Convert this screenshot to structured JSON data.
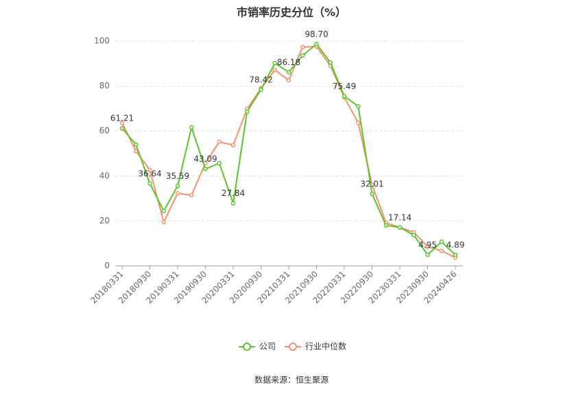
{
  "chart_data": {
    "type": "line",
    "title": "市销率历史分位（%）",
    "source": "数据来源：恒生聚源",
    "categories": [
      "20180331",
      null,
      "20180930",
      null,
      "20190331",
      null,
      "20190930",
      null,
      "20200331",
      null,
      "20200930",
      null,
      "20210331",
      null,
      "20210930",
      null,
      "20220331",
      null,
      "20220930",
      null,
      "20230331",
      null,
      "20230930",
      null,
      "20240426"
    ],
    "series": [
      {
        "name": "公司",
        "color": "#5ac42c",
        "values": [
          61.21,
          54,
          36.64,
          24.4,
          35.59,
          61.6,
          43.09,
          45.7,
          27.84,
          68.6,
          78.42,
          90.2,
          86.18,
          93.6,
          98.7,
          90.5,
          75.49,
          71,
          32.01,
          18,
          17.14,
          13.7,
          4.95,
          10.7,
          4.89
        ],
        "value_labels": [
          "61.21",
          null,
          "36.64",
          null,
          "35.59",
          null,
          "43.09",
          null,
          "27.84",
          null,
          "78.42",
          null,
          "86.18",
          null,
          "98.70",
          null,
          "75.49",
          null,
          "32.01",
          null,
          "17.14",
          null,
          "4.95",
          null,
          "4.89"
        ]
      },
      {
        "name": "行业中位数",
        "color": "#f4906b",
        "values": [
          63.7,
          51,
          42.7,
          19.5,
          32.3,
          31.4,
          45.7,
          55.2,
          53.7,
          69.8,
          79,
          87.2,
          82.6,
          97.3,
          97.6,
          89,
          75,
          63.7,
          36,
          19.2,
          17.1,
          15,
          8.5,
          6.7,
          3.7
        ]
      }
    ],
    "ylim": [
      0,
      100
    ],
    "yticks": [
      0,
      20,
      40,
      60,
      80,
      100
    ],
    "grid": true,
    "legend": "bottom"
  }
}
